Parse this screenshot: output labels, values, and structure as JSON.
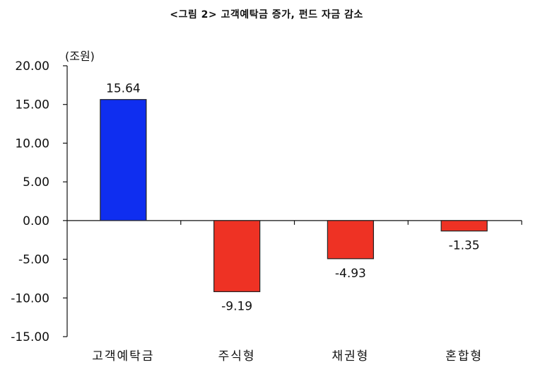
{
  "title": "<그림 2> 고객예탁금 증가, 펀드 자금 감소",
  "unit_label": "(조원)",
  "chart_data": {
    "type": "bar",
    "categories": [
      "고객예탁금",
      "주식형",
      "채권형",
      "혼합형"
    ],
    "values": [
      15.64,
      -9.19,
      -4.93,
      -1.35
    ],
    "data_labels": [
      "15.64",
      "-9.19",
      "-4.93",
      "-1.35"
    ],
    "bar_colors": [
      "#0f2ef0",
      "#ee3224",
      "#ee3224",
      "#ee3224"
    ],
    "ylim": [
      -15,
      20
    ],
    "yticks": [
      20,
      15,
      10,
      5,
      0,
      -5,
      -10,
      -15
    ],
    "ytick_labels": [
      "20.00",
      "15.00",
      "10.00",
      "5.00",
      "0.00",
      "-5.00",
      "-10.00",
      "-15.00"
    ],
    "xlabel": "",
    "ylabel": "(조원)",
    "grid": false,
    "legend": "none"
  }
}
